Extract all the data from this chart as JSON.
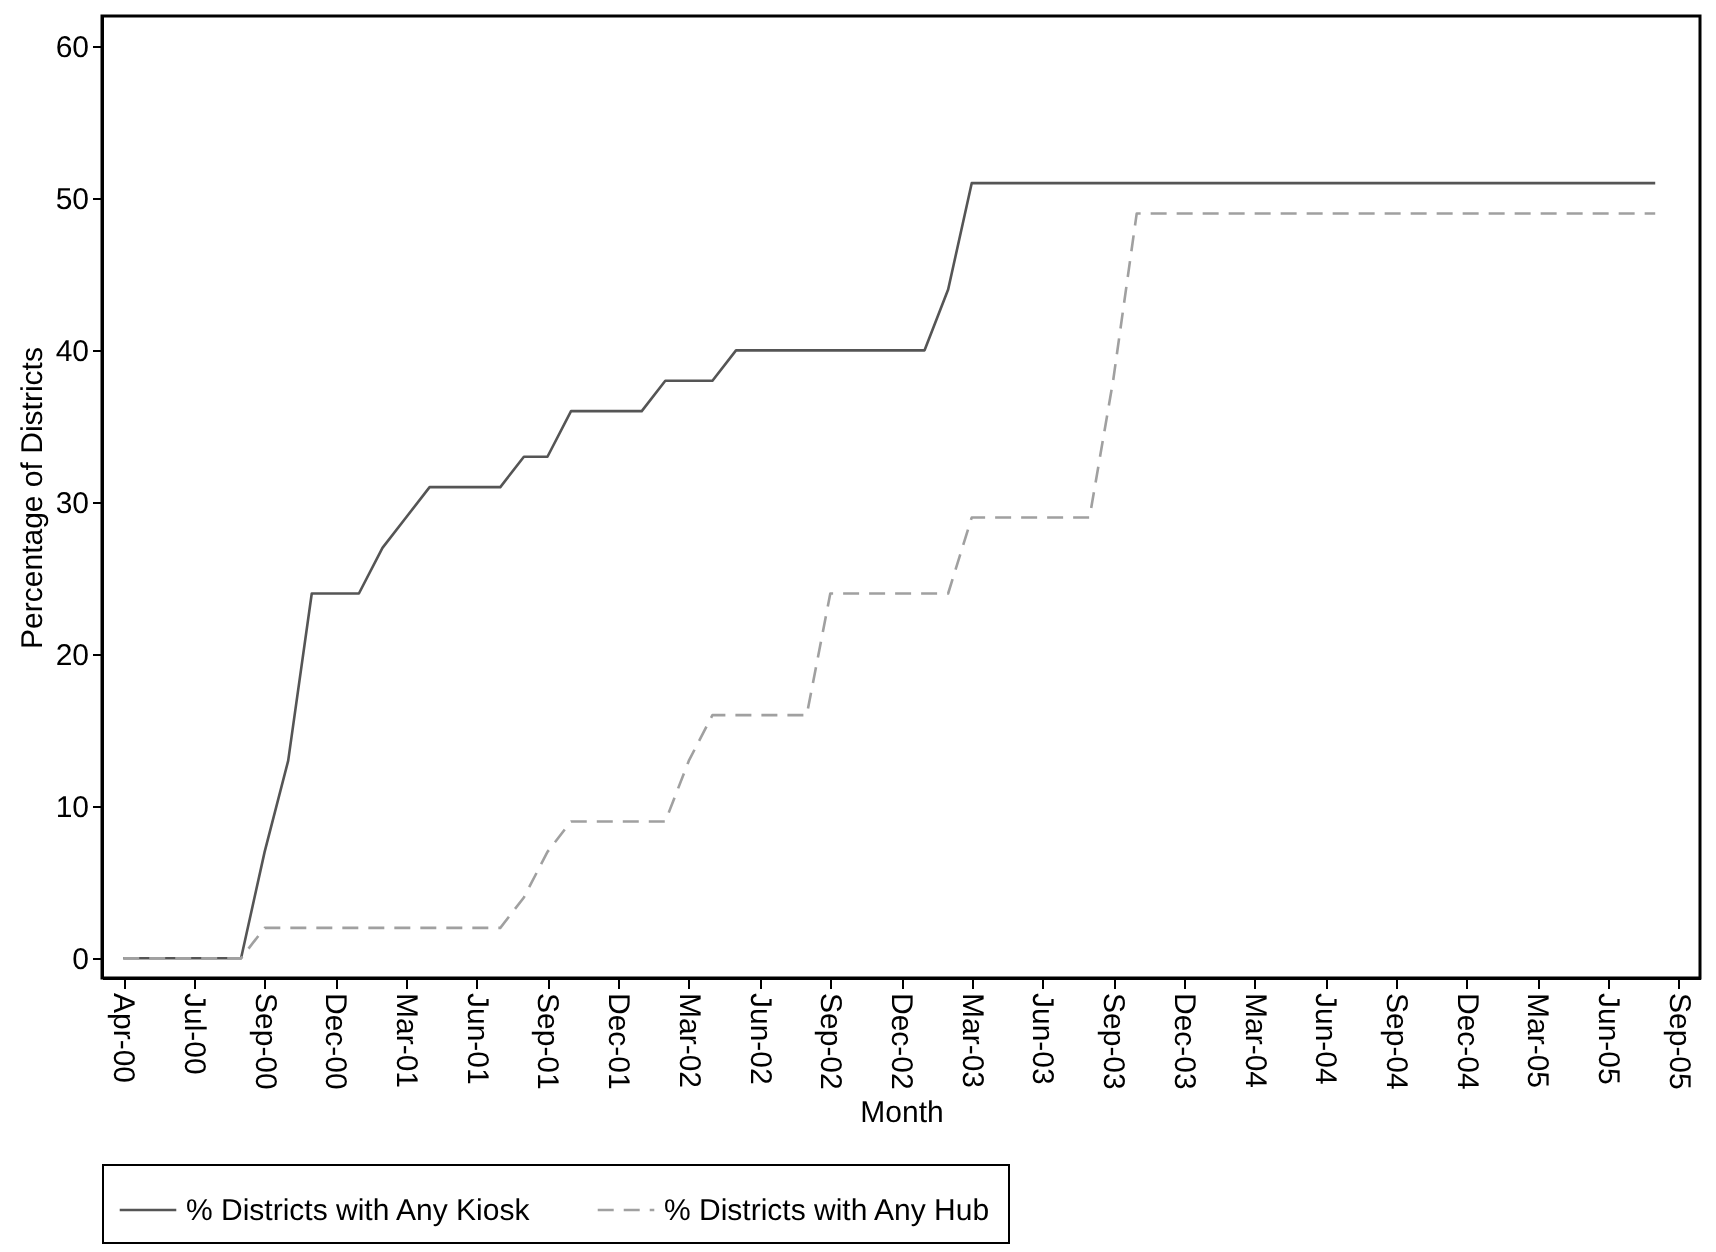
{
  "chart_data": {
    "type": "line",
    "xlabel": "Month",
    "ylabel": "Percentage of Districts",
    "ylim": [
      -1.3,
      62
    ],
    "categories": [
      "Apr-00",
      null,
      null,
      "Jul-00",
      null,
      null,
      "Sep-00",
      null,
      null,
      "Dec-00",
      null,
      null,
      "Mar-01",
      null,
      null,
      "Jun-01",
      null,
      null,
      "Sep-01",
      null,
      null,
      "Dec-01",
      null,
      null,
      "Mar-02",
      null,
      null,
      "Jun-02",
      null,
      null,
      "Sep-02",
      null,
      null,
      "Dec-02",
      null,
      null,
      "Mar-03",
      null,
      null,
      "Jun-03",
      null,
      null,
      "Sep-03",
      null,
      null,
      "Dec-03",
      null,
      null,
      "Mar-04",
      null,
      null,
      "Jun-04",
      null,
      null,
      "Sep-04",
      null,
      null,
      "Dec-04",
      null,
      null,
      "Mar-05",
      null,
      null,
      "Jun-05",
      null,
      null,
      "Sep-05"
    ],
    "yticks": [
      0,
      10,
      20,
      30,
      40,
      50,
      60
    ],
    "grid": false,
    "legend": "bottom",
    "marker": "none",
    "series": [
      {
        "name": "% Districts with Any Kiosk",
        "color": "#555555",
        "line_style": "solid",
        "values": [
          0,
          0,
          0,
          0,
          0,
          0,
          7,
          13,
          24,
          24,
          24,
          27,
          29,
          31,
          31,
          31,
          31,
          33,
          33,
          36,
          36,
          36,
          36,
          38,
          38,
          38,
          40,
          40,
          40,
          40,
          40,
          40,
          40,
          40,
          40,
          44,
          51,
          51,
          51,
          51,
          51,
          51,
          51,
          51,
          51,
          51,
          51,
          51,
          51,
          51,
          51,
          51,
          51,
          51,
          51,
          51,
          51,
          51,
          51,
          51,
          51,
          51,
          51,
          51,
          51,
          51,
          null
        ]
      },
      {
        "name": "% Districts with Any Hub",
        "color": "#a0a0a0",
        "line_style": "dashed",
        "values": [
          0,
          0,
          0,
          0,
          0,
          0,
          2,
          2,
          2,
          2,
          2,
          2,
          2,
          2,
          2,
          2,
          2,
          4,
          7,
          9,
          9,
          9,
          9,
          9,
          13,
          16,
          16,
          16,
          16,
          16,
          24,
          24,
          24,
          24,
          24,
          24,
          29,
          29,
          29,
          29,
          29,
          29,
          38,
          49,
          49,
          49,
          49,
          49,
          49,
          49,
          49,
          49,
          49,
          49,
          49,
          49,
          49,
          49,
          49,
          49,
          49,
          49,
          49,
          49,
          49,
          49,
          null
        ]
      }
    ]
  }
}
